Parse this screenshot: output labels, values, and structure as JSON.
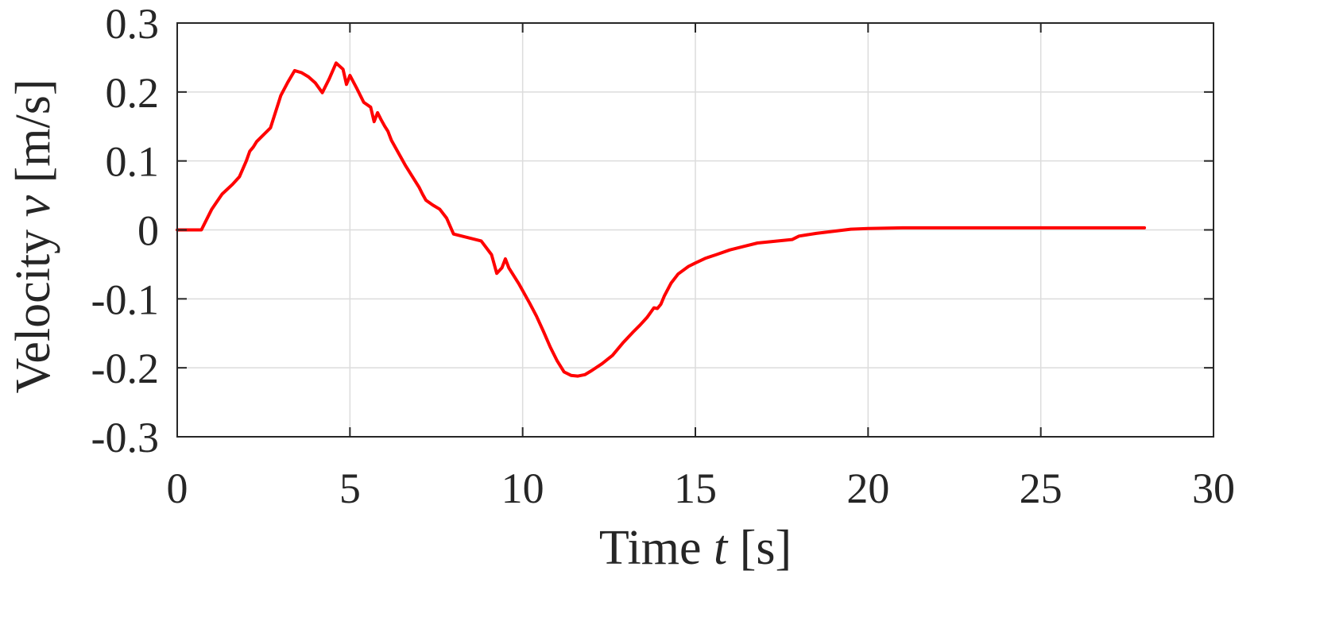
{
  "chart_data": {
    "type": "line",
    "xlabel": {
      "prefix": "Time ",
      "var": "t",
      "suffix": " [s]"
    },
    "ylabel": {
      "prefix": "Velocity ",
      "var": "v",
      "suffix": " [m/s]"
    },
    "xlim": [
      0,
      30
    ],
    "ylim": [
      -0.3,
      0.3
    ],
    "xticks": [
      0,
      5,
      10,
      15,
      20,
      25,
      30
    ],
    "yticks": [
      -0.3,
      -0.2,
      -0.1,
      0,
      0.1,
      0.2,
      0.3
    ],
    "xtick_labels": [
      "0",
      "5",
      "10",
      "15",
      "20",
      "25",
      "30"
    ],
    "ytick_labels": [
      "-0.3",
      "-0.2",
      "-0.1",
      "0",
      "0.1",
      "0.2",
      "0.3"
    ],
    "grid": true,
    "series": [
      {
        "color": "#ff0000",
        "x": [
          0,
          0.7,
          1.0,
          1.3,
          1.6,
          1.8,
          2.0,
          2.1,
          2.2,
          2.3,
          2.7,
          3.0,
          3.2,
          3.4,
          3.6,
          3.8,
          4.0,
          4.2,
          4.4,
          4.6,
          4.8,
          4.9,
          5.0,
          5.2,
          5.4,
          5.6,
          5.7,
          5.8,
          5.9,
          6.0,
          6.1,
          6.2,
          6.4,
          6.6,
          6.8,
          7.0,
          7.1,
          7.2,
          7.4,
          7.6,
          7.8,
          8.0,
          8.4,
          8.8,
          9.1,
          9.25,
          9.4,
          9.5,
          9.6,
          9.9,
          10.2,
          10.4,
          10.6,
          10.8,
          11.0,
          11.2,
          11.4,
          11.6,
          11.8,
          12.0,
          12.3,
          12.6,
          12.9,
          13.2,
          13.4,
          13.6,
          13.8,
          13.9,
          14.0,
          14.1,
          14.3,
          14.5,
          14.8,
          15.0,
          15.3,
          15.6,
          16.0,
          16.4,
          16.8,
          17.2,
          17.8,
          18.0,
          18.5,
          19.0,
          19.5,
          20.0,
          21.0,
          22.0,
          24.0,
          26.0,
          28.0
        ],
        "y": [
          0,
          0,
          0.03,
          0.052,
          0.066,
          0.077,
          0.1,
          0.114,
          0.12,
          0.128,
          0.148,
          0.195,
          0.214,
          0.231,
          0.228,
          0.222,
          0.213,
          0.199,
          0.219,
          0.242,
          0.233,
          0.211,
          0.224,
          0.205,
          0.185,
          0.178,
          0.157,
          0.17,
          0.16,
          0.151,
          0.143,
          0.13,
          0.112,
          0.094,
          0.078,
          0.062,
          0.052,
          0.043,
          0.036,
          0.03,
          0.017,
          -0.006,
          -0.011,
          -0.016,
          -0.036,
          -0.063,
          -0.055,
          -0.042,
          -0.055,
          -0.079,
          -0.106,
          -0.125,
          -0.147,
          -0.17,
          -0.19,
          -0.206,
          -0.211,
          -0.212,
          -0.21,
          -0.204,
          -0.194,
          -0.182,
          -0.164,
          -0.148,
          -0.138,
          -0.127,
          -0.113,
          -0.114,
          -0.108,
          -0.096,
          -0.077,
          -0.064,
          -0.053,
          -0.048,
          -0.041,
          -0.036,
          -0.029,
          -0.024,
          -0.019,
          -0.017,
          -0.014,
          -0.009,
          -0.005,
          -0.002,
          0.001,
          0.002,
          0.003,
          0.003,
          0.003,
          0.003,
          0.003
        ]
      }
    ]
  }
}
